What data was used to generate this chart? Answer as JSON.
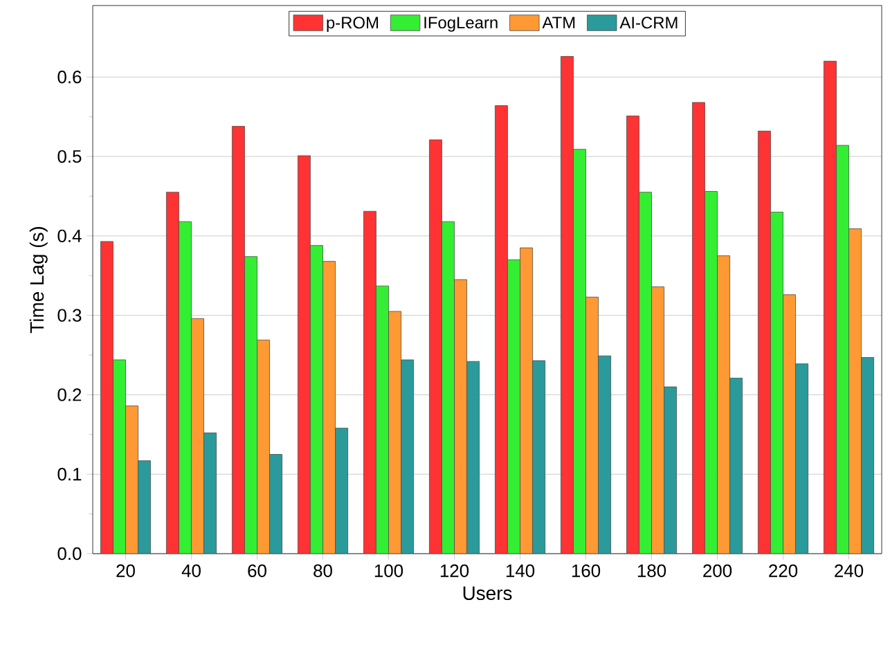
{
  "chart_data": {
    "type": "bar",
    "xlabel": "Users",
    "ylabel": "Time Lag (s)",
    "categories": [
      "20",
      "40",
      "60",
      "80",
      "100",
      "120",
      "140",
      "160",
      "180",
      "200",
      "220",
      "240"
    ],
    "series": [
      {
        "name": "p-ROM",
        "color": "#ff3333",
        "values": [
          0.393,
          0.455,
          0.538,
          0.501,
          0.431,
          0.521,
          0.564,
          0.626,
          0.551,
          0.568,
          0.532,
          0.62
        ]
      },
      {
        "name": "IFogLearn",
        "color": "#33ee33",
        "values": [
          0.244,
          0.418,
          0.374,
          0.388,
          0.337,
          0.418,
          0.37,
          0.509,
          0.455,
          0.456,
          0.43,
          0.514
        ]
      },
      {
        "name": "ATM",
        "color": "#ff9933",
        "values": [
          0.186,
          0.296,
          0.269,
          0.368,
          0.305,
          0.345,
          0.385,
          0.323,
          0.336,
          0.375,
          0.326,
          0.409
        ]
      },
      {
        "name": "AI-CRM",
        "color": "#2a9a9a",
        "values": [
          0.117,
          0.152,
          0.125,
          0.158,
          0.244,
          0.242,
          0.243,
          0.249,
          0.21,
          0.221,
          0.239,
          0.247
        ]
      }
    ],
    "ylim": [
      0,
      0.69
    ],
    "yticks": [
      {
        "value": 0,
        "label": "0.0"
      },
      {
        "value": 0.1,
        "label": "0.1"
      },
      {
        "value": 0.2,
        "label": "0.2"
      },
      {
        "value": 0.3,
        "label": "0.3"
      },
      {
        "value": 0.4,
        "label": "0.4"
      },
      {
        "value": 0.5,
        "label": "0.5"
      },
      {
        "value": 0.6,
        "label": "0.6"
      }
    ],
    "grid": "y",
    "legend": "top"
  }
}
